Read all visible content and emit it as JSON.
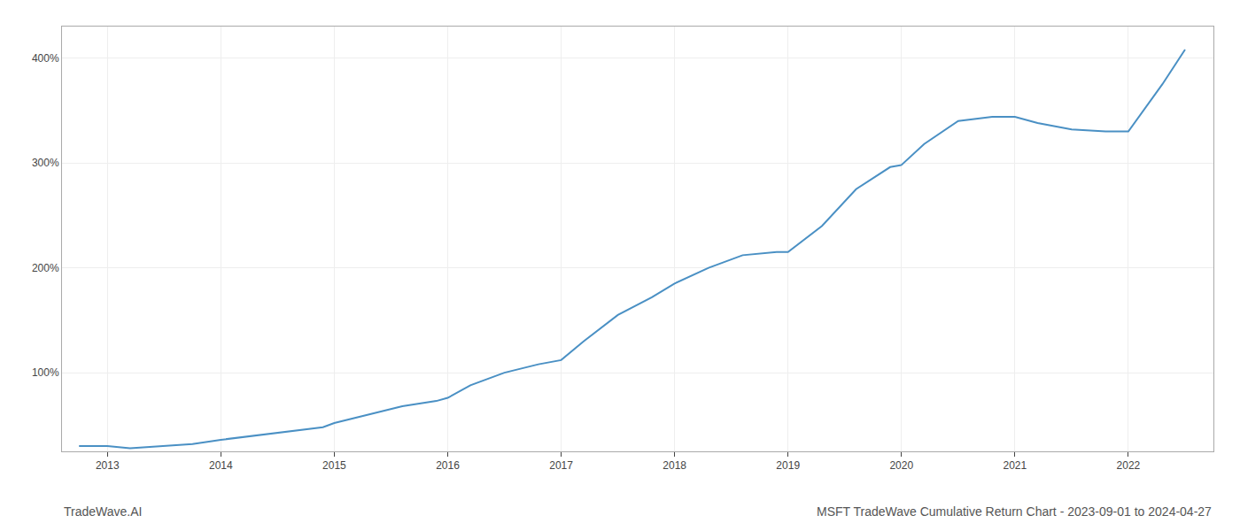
{
  "chart_data": {
    "type": "line",
    "title": "MSFT TradeWave Cumulative Return Chart - 2023-09-01 to 2024-04-27",
    "annotations": [
      "TradeWave.AI"
    ],
    "x": [
      2012.75,
      2013.0,
      2013.2,
      2013.5,
      2013.75,
      2014.0,
      2014.3,
      2014.6,
      2014.9,
      2015.0,
      2015.3,
      2015.6,
      2015.9,
      2016.0,
      2016.2,
      2016.5,
      2016.8,
      2017.0,
      2017.2,
      2017.5,
      2017.8,
      2018.0,
      2018.3,
      2018.6,
      2018.9,
      2019.0,
      2019.3,
      2019.6,
      2019.9,
      2020.0,
      2020.2,
      2020.5,
      2020.8,
      2021.0,
      2021.2,
      2021.5,
      2021.8,
      2022.0,
      2022.3,
      2022.5
    ],
    "values": [
      30,
      30,
      28,
      30,
      32,
      36,
      40,
      44,
      48,
      52,
      60,
      68,
      73,
      76,
      88,
      100,
      108,
      112,
      130,
      155,
      172,
      185,
      200,
      212,
      215,
      215,
      240,
      275,
      296,
      298,
      318,
      340,
      344,
      344,
      338,
      332,
      330,
      330,
      375,
      408
    ],
    "color": "#4a90c4",
    "xlim": [
      2012.6,
      2022.75
    ],
    "ylim": [
      25,
      430
    ],
    "xticks": [
      2013,
      2014,
      2015,
      2016,
      2017,
      2018,
      2019,
      2020,
      2021,
      2022
    ],
    "yticks": [
      {
        "value": 100,
        "label": "100%"
      },
      {
        "value": 200,
        "label": "200%"
      },
      {
        "value": 300,
        "label": "300%"
      },
      {
        "value": 400,
        "label": "400%"
      }
    ],
    "grid": true
  }
}
